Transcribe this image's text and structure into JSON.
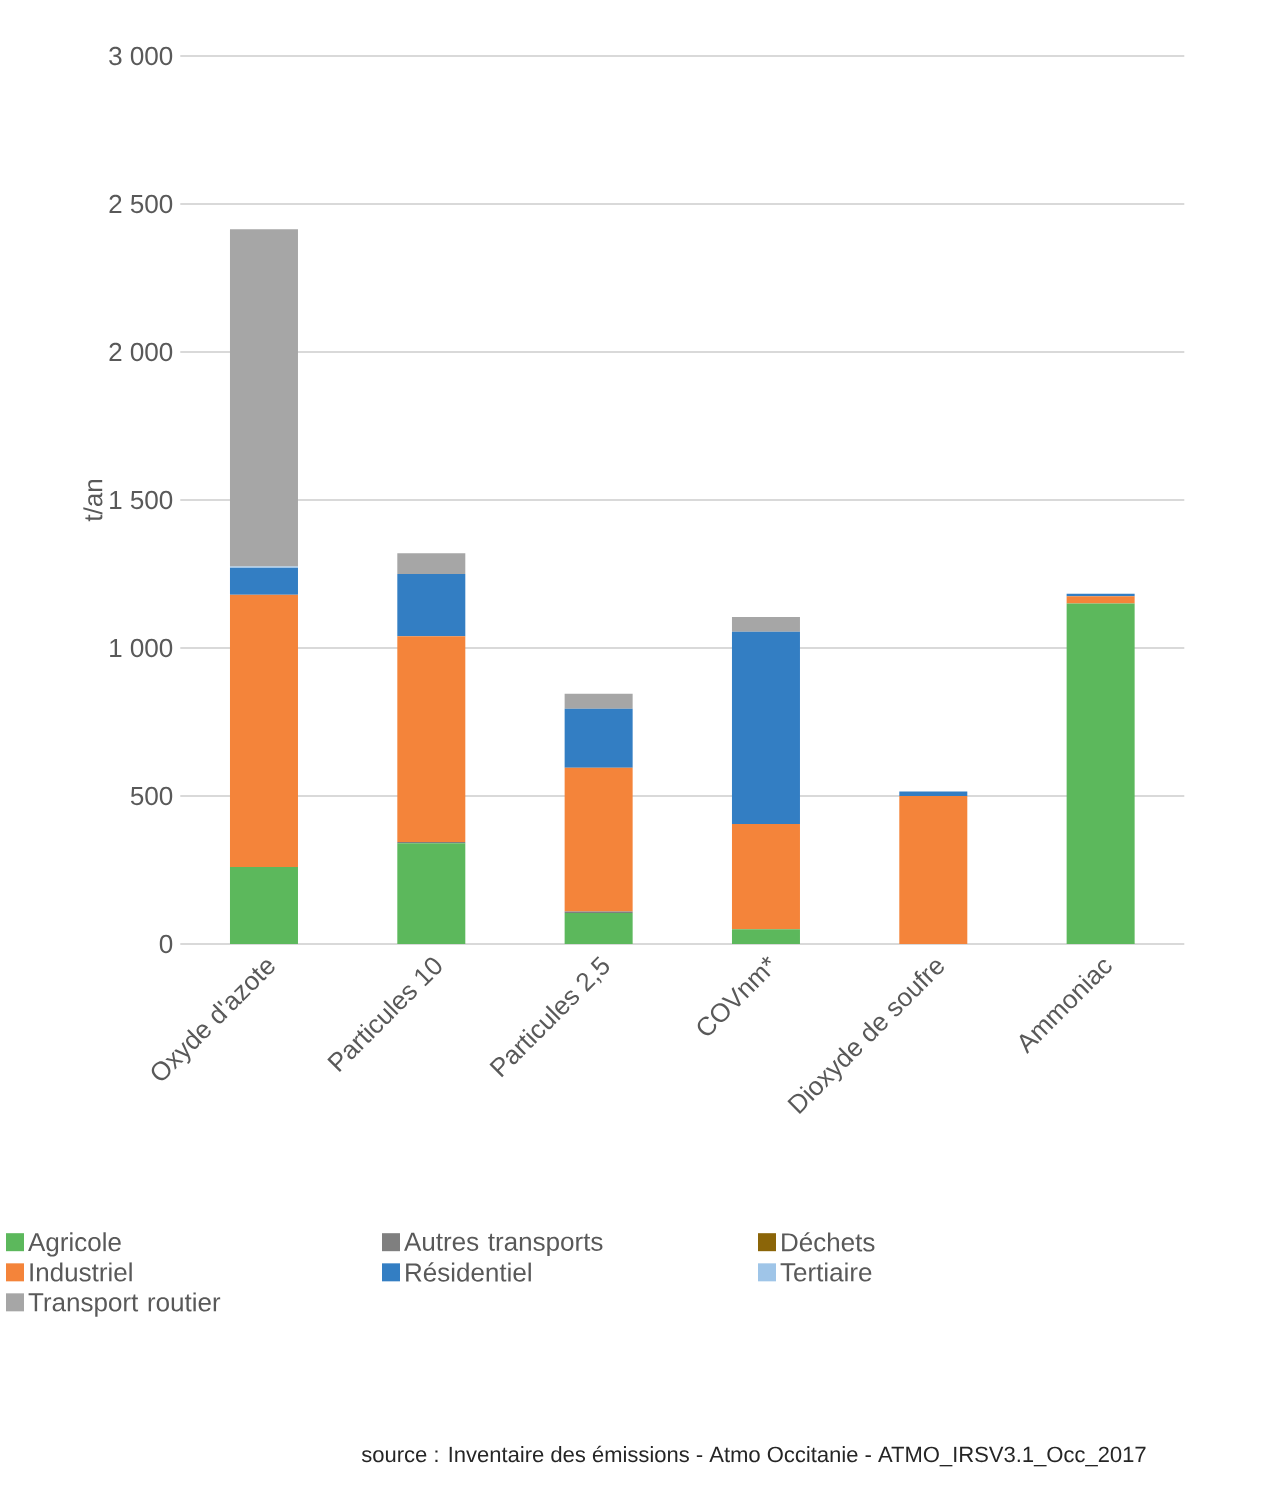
{
  "chart_data": {
    "type": "bar",
    "stacked": true,
    "ylabel": "t/an",
    "categories": [
      "Oxyde d'azote",
      "Particules 10",
      "Particules 2,5",
      "COVnm*",
      "Dioxyde de soufre",
      "Ammoniac"
    ],
    "series": [
      {
        "name": "Agricole",
        "color": "#5cb85c",
        "values": [
          260,
          340,
          105,
          50,
          0,
          1150
        ]
      },
      {
        "name": "Autres transports",
        "color": "#7f7f7f",
        "values": [
          0,
          5,
          5,
          0,
          0,
          0
        ]
      },
      {
        "name": "Déchets",
        "color": "#8b6508",
        "values": [
          0,
          0,
          0,
          0,
          0,
          0
        ]
      },
      {
        "name": "Industriel",
        "color": "#f4843a",
        "values": [
          920,
          695,
          485,
          355,
          500,
          25
        ]
      },
      {
        "name": "Résidentiel",
        "color": "#337ec3",
        "values": [
          90,
          210,
          200,
          650,
          15,
          8
        ]
      },
      {
        "name": "Tertiaire",
        "color": "#9fc5e8",
        "values": [
          5,
          0,
          0,
          0,
          0,
          0
        ]
      },
      {
        "name": "Transport routier",
        "color": "#a6a6a6",
        "values": [
          1140,
          70,
          50,
          50,
          null,
          0
        ]
      }
    ],
    "ylim": [
      0,
      3000
    ],
    "yticks": [
      0,
      500,
      {
        "value": 1000,
        "label": "1 000"
      },
      {
        "value": 1500,
        "label": "1 500"
      },
      {
        "value": 2000,
        "label": "2 000"
      },
      {
        "value": 2500,
        "label": "2 500"
      },
      {
        "value": 3000,
        "label": "3 000"
      }
    ],
    "grid": "y",
    "legend": "bottom",
    "annotations": [
      "source : Inventaire des émissions - Atmo Occitanie - ATMO_IRSV3.1_Occ_2017"
    ]
  }
}
